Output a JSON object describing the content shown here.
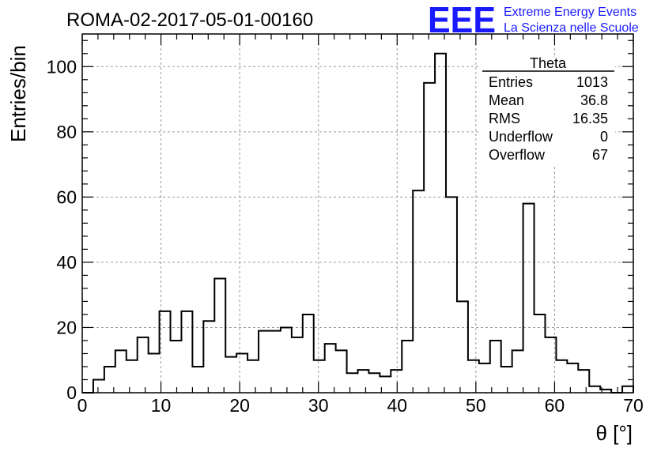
{
  "title": "ROMA-02-2017-05-01-00160",
  "logo": {
    "mark": "EEE",
    "line1": "Extreme Energy Events",
    "line2": "La Scienza nelle Scuole",
    "color": "#1a1aff"
  },
  "stats": {
    "name": "Theta",
    "rows": [
      {
        "label": "Entries",
        "value": "1013"
      },
      {
        "label": "Mean",
        "value": "36.8"
      },
      {
        "label": "RMS",
        "value": "16.35"
      },
      {
        "label": "Underflow",
        "value": "0"
      },
      {
        "label": "Overflow",
        "value": "67"
      }
    ]
  },
  "chart_data": {
    "type": "bar",
    "histogram": true,
    "xlabel": "θ [°]",
    "ylabel": "Entries/bin",
    "xlim": [
      0,
      70
    ],
    "ylim": [
      0,
      110
    ],
    "grid": true,
    "bin_width": 1.4,
    "x_bin_edges_start": 0,
    "x_ticks": [
      0,
      10,
      20,
      30,
      40,
      50,
      60,
      70
    ],
    "y_ticks": [
      0,
      20,
      40,
      60,
      80,
      100
    ],
    "x_tick_labels": [
      "0",
      "10",
      "20",
      "30",
      "40",
      "50",
      "60",
      "70"
    ],
    "y_tick_labels": [
      "0",
      "20",
      "40",
      "60",
      "80",
      "100"
    ],
    "values": [
      0,
      4,
      8,
      13,
      10,
      17,
      12,
      25,
      16,
      25,
      8,
      22,
      35,
      11,
      12,
      10,
      19,
      19,
      20,
      17,
      24,
      10,
      15,
      13,
      6,
      7,
      6,
      5,
      7,
      16,
      62,
      95,
      104,
      60,
      28,
      10,
      9,
      16,
      8,
      13,
      58,
      24,
      17,
      10,
      9,
      7,
      2,
      1,
      0,
      2
    ]
  }
}
